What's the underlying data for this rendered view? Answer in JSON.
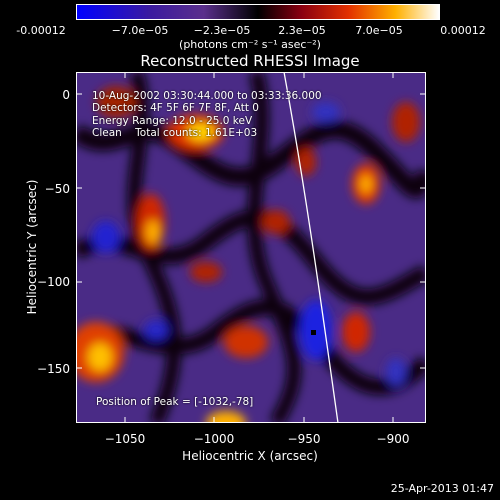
{
  "colorbar": {
    "ticks": [
      "-0.00012",
      "−7.0e−05",
      "−2.3e−05",
      "2.3e−05",
      "7.0e−05",
      "0.00012"
    ],
    "units": "(photons cm⁻² s⁻¹ asec⁻²)"
  },
  "title": "Reconstructed RHESSI Image",
  "info": {
    "time_range": "10-Aug-2002 03:30:44.000 to 03:33:36.000",
    "detectors": "Detectors: 4F 5F 6F 7F 8F, Att 0",
    "energy": "Energy Range: 12.0 - 25.0 keV",
    "clean": "Clean    Total counts: 1.61E+03"
  },
  "peak": "Position of Peak = [-1032,-78]",
  "axes": {
    "xlabel": "Heliocentric X (arcsec)",
    "ylabel": "Heliocentric Y (arcsec)",
    "xticks": [
      "−1050",
      "−1000",
      "−950",
      "−900"
    ],
    "yticks": [
      "0",
      "−50",
      "−100",
      "−150"
    ]
  },
  "timestamp": "25-Apr-2013 01:47"
}
